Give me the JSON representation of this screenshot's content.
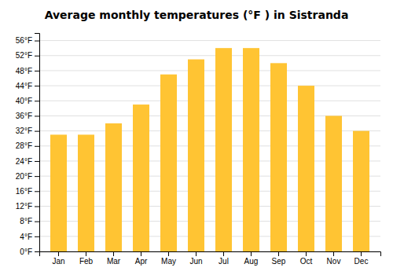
{
  "chart_data": {
    "type": "bar",
    "title": "Average monthly temperatures (°F ) in Sistranda",
    "categories": [
      "Jan",
      "Feb",
      "Mar",
      "Apr",
      "May",
      "Jun",
      "Jul",
      "Aug",
      "Sep",
      "Oct",
      "Nov",
      "Dec"
    ],
    "values": [
      31,
      31,
      34,
      39,
      47,
      51,
      54,
      54,
      50,
      44,
      36,
      32
    ],
    "color": "#FFC433",
    "ylim": [
      0,
      58
    ],
    "yticks": [
      {
        "value": 0,
        "label": "0°F"
      },
      {
        "value": 4,
        "label": "4°F"
      },
      {
        "value": 8,
        "label": "8°F"
      },
      {
        "value": 12,
        "label": "12°F"
      },
      {
        "value": 16,
        "label": "16°F"
      },
      {
        "value": 20,
        "label": "20°F"
      },
      {
        "value": 24,
        "label": "24°F"
      },
      {
        "value": 28,
        "label": "28°F"
      },
      {
        "value": 32,
        "label": "32°F"
      },
      {
        "value": 36,
        "label": "36°F"
      },
      {
        "value": 40,
        "label": "40°F"
      },
      {
        "value": 44,
        "label": "44°F"
      },
      {
        "value": 48,
        "label": "48°F"
      },
      {
        "value": 52,
        "label": "52°F"
      },
      {
        "value": 56,
        "label": "56°F"
      }
    ],
    "grid": true
  }
}
